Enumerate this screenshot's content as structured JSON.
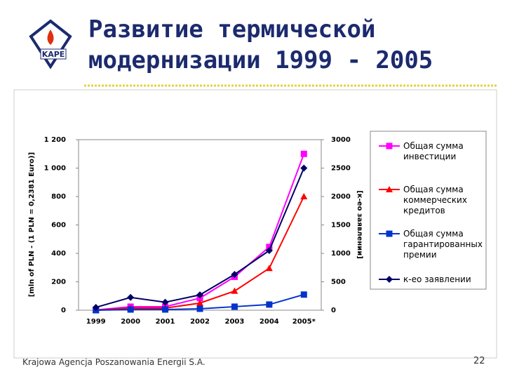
{
  "logo": "KAPE",
  "footer": "Krajowa Agencja Poszanowania Energii S.A.",
  "page_number": 22,
  "chart_data": {
    "type": "line",
    "title": "Развитие термической модернизации 1999 - 2005",
    "y_label": "[mln of PLN - (1 PLN = 0,2381 Euro)]",
    "y2_label": "[к-ео заявлении]",
    "categories": [
      "1999",
      "2000",
      "2001",
      "2002",
      "2003",
      "2004",
      "2005*"
    ],
    "ylim": [
      0,
      1200
    ],
    "yticks": [
      0,
      200,
      400,
      600,
      800,
      {
        "value": 1000,
        "label": "1 000"
      },
      {
        "value": 1200,
        "label": "1 200"
      }
    ],
    "y2lim": [
      0,
      3000
    ],
    "y2ticks": [
      0,
      500,
      1000,
      1500,
      2000,
      2500,
      3000
    ],
    "series": [
      {
        "name": "Общая сумма инвестиции",
        "color": "#ff00ff",
        "marker": "square",
        "values": [
          2,
          25,
          25,
          85,
          235,
          445,
          1100
        ]
      },
      {
        "name": "Общая сумма коммерческих кредитов",
        "color": "#ff0000",
        "marker": "triangle",
        "values": [
          0,
          15,
          15,
          50,
          135,
          295,
          800
        ]
      },
      {
        "name": "Общая сумма гарантированных премии",
        "color": "#0033cc",
        "marker": "square",
        "values": [
          0,
          5,
          5,
          10,
          25,
          40,
          110
        ]
      },
      {
        "name": "к-ео заявлении",
        "color": "#000066",
        "marker": "diamond",
        "axis": "y2",
        "values": [
          50,
          225,
          140,
          270,
          630,
          1050,
          2500
        ]
      }
    ],
    "legend": "right"
  }
}
